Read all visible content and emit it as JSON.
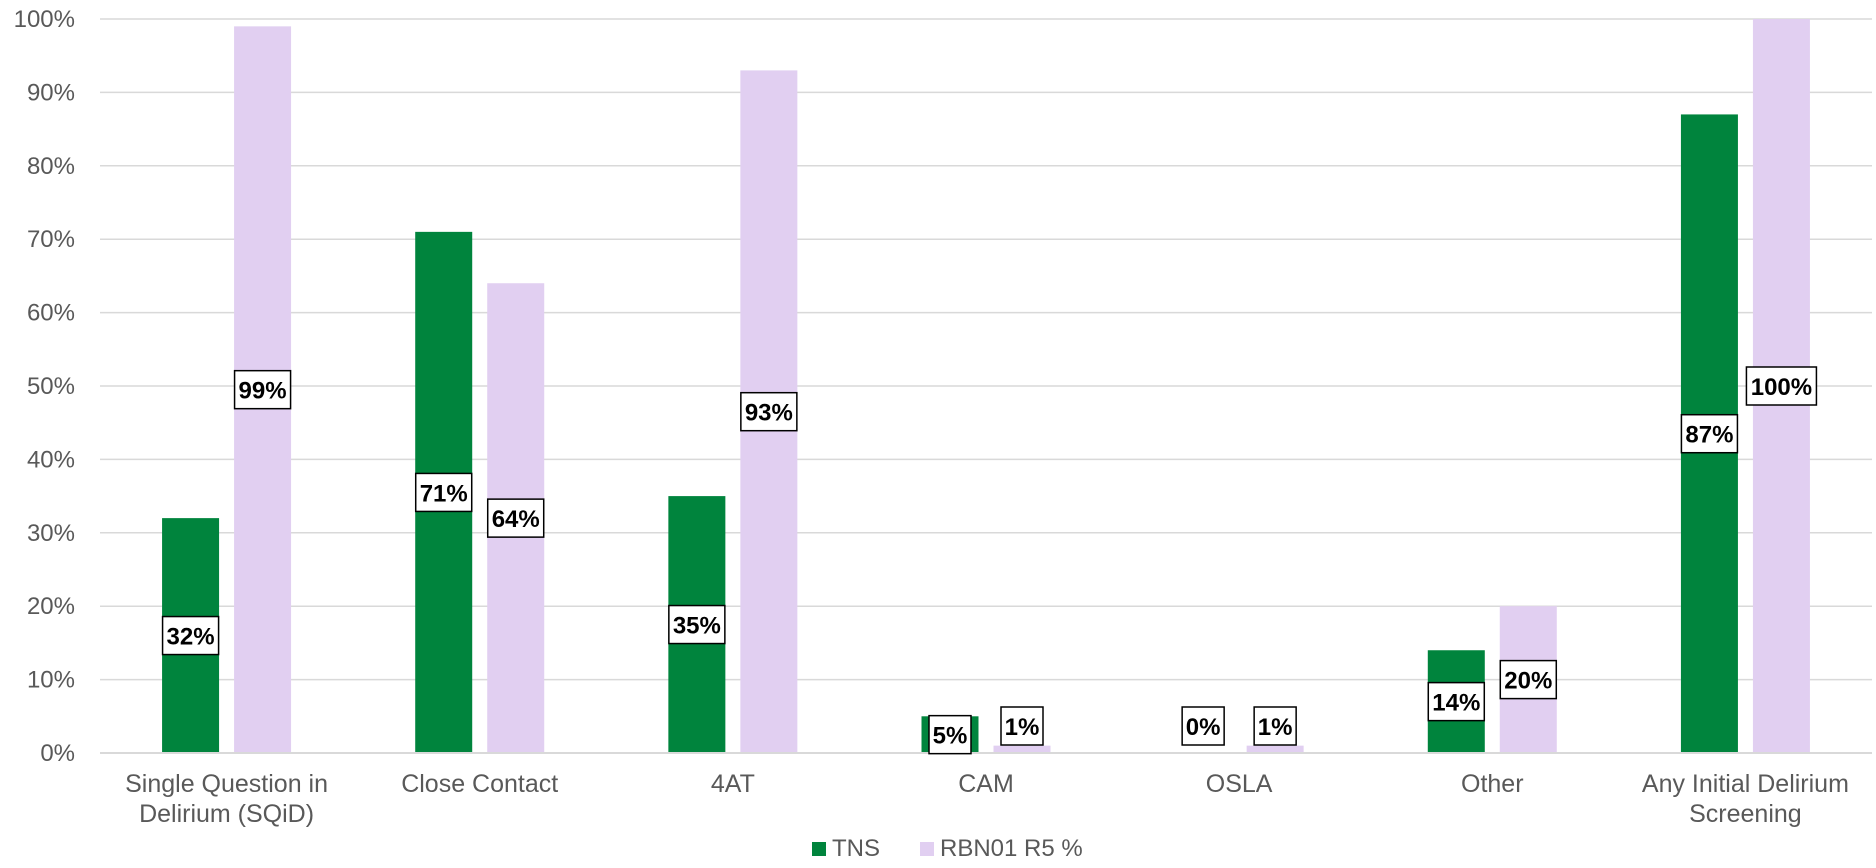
{
  "chart_data": {
    "type": "bar",
    "categories": [
      [
        "Single Question in",
        "Delirium (SQiD)"
      ],
      [
        "Close Contact"
      ],
      [
        "4AT"
      ],
      [
        "CAM"
      ],
      [
        "OSLA"
      ],
      [
        "Other"
      ],
      [
        "Any Initial Delirium",
        "Screening"
      ]
    ],
    "series": [
      {
        "name": "TNS",
        "color": "#00843D",
        "values": [
          32,
          71,
          35,
          5,
          0,
          14,
          87
        ],
        "labels": [
          "32%",
          "71%",
          "35%",
          "5%",
          "0%",
          "14%",
          "87%"
        ]
      },
      {
        "name": "RBN01 R5 %",
        "color": "#E1CFF1",
        "values": [
          99,
          64,
          93,
          1,
          1,
          20,
          100
        ],
        "labels": [
          "99%",
          "64%",
          "93%",
          "1%",
          "1%",
          "20%",
          "100%"
        ]
      }
    ],
    "ylim": [
      0,
      100
    ],
    "yticks": [
      0,
      10,
      20,
      30,
      40,
      50,
      60,
      70,
      80,
      90,
      100
    ],
    "ytick_labels": [
      "0%",
      "10%",
      "20%",
      "30%",
      "40%",
      "50%",
      "60%",
      "70%",
      "80%",
      "90%",
      "100%"
    ],
    "grid": true,
    "legend": "bottom-center",
    "title": "",
    "xlabel": "",
    "ylabel": ""
  }
}
